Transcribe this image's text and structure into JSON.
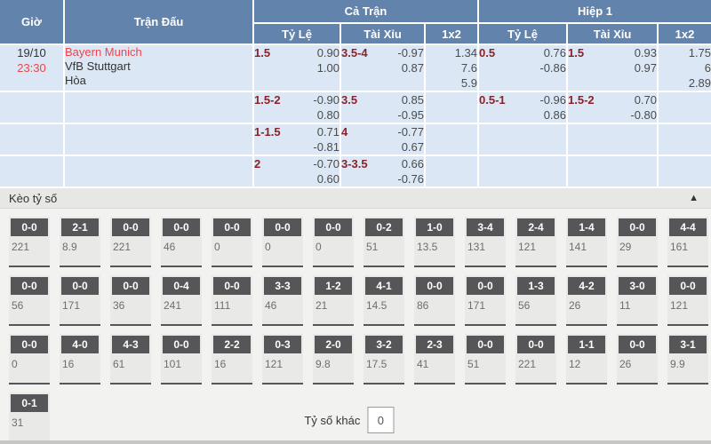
{
  "colors": {
    "header_bg": "#6284ac",
    "row_bg": "#dbe7f5",
    "accent_red": "#e8484d",
    "line_maroon": "#8a2228",
    "tile_dark": "#565658"
  },
  "table": {
    "columns": {
      "time": "Giờ",
      "match": "Trận Đấu",
      "full_match": "Cả Trận",
      "first_half": "Hiệp 1",
      "handicap": "Tỷ Lệ",
      "over_under": "Tài Xỉu",
      "one_x_two": "1x2"
    },
    "match": {
      "date": "19/10",
      "time": "23:30",
      "home_team": "Bayern Munich",
      "away_team": "VfB Stuttgart",
      "draw_label": "Hòa"
    },
    "rows": [
      {
        "full": {
          "hdp": {
            "line": "1.5",
            "odds": [
              "0.90",
              "1.00"
            ]
          },
          "ou": {
            "line": "3.5-4",
            "odds": [
              "-0.97",
              "0.87"
            ]
          },
          "x12": [
            "1.34",
            "7.6",
            "5.9"
          ]
        },
        "half": {
          "hdp": {
            "line": "0.5",
            "odds": [
              "0.76",
              "-0.86"
            ]
          },
          "ou": {
            "line": "1.5",
            "odds": [
              "0.93",
              "0.97"
            ]
          },
          "x12": [
            "1.75",
            "6",
            "2.89"
          ]
        }
      },
      {
        "full": {
          "hdp": {
            "line": "1.5-2",
            "odds": [
              "-0.90",
              "0.80"
            ]
          },
          "ou": {
            "line": "3.5",
            "odds": [
              "0.85",
              "-0.95"
            ]
          },
          "x12": []
        },
        "half": {
          "hdp": {
            "line": "0.5-1",
            "odds": [
              "-0.96",
              "0.86"
            ]
          },
          "ou": {
            "line": "1.5-2",
            "odds": [
              "0.70",
              "-0.80"
            ]
          },
          "x12": []
        }
      },
      {
        "full": {
          "hdp": {
            "line": "1-1.5",
            "odds": [
              "0.71",
              "-0.81"
            ]
          },
          "ou": {
            "line": "4",
            "odds": [
              "-0.77",
              "0.67"
            ]
          },
          "x12": []
        },
        "half": {
          "hdp": null,
          "ou": null,
          "x12": []
        }
      },
      {
        "full": {
          "hdp": {
            "line": "2",
            "odds": [
              "-0.70",
              "0.60"
            ]
          },
          "ou": {
            "line": "3-3.5",
            "odds": [
              "0.66",
              "-0.76"
            ]
          },
          "x12": []
        },
        "half": {
          "hdp": null,
          "ou": null,
          "x12": []
        }
      }
    ]
  },
  "score_section": {
    "title": "Kèo tỷ số",
    "collapse_icon": "▲",
    "other_score_label": "Tỷ số khác",
    "other_score_value": "0",
    "rows": [
      [
        {
          "score": "0-0",
          "odds": "221"
        },
        {
          "score": "2-1",
          "odds": "8.9"
        },
        {
          "score": "0-0",
          "odds": "221"
        },
        {
          "score": "0-0",
          "odds": "46"
        },
        {
          "score": "0-0",
          "odds": "0"
        },
        {
          "score": "0-0",
          "odds": "0"
        },
        {
          "score": "0-0",
          "odds": "0"
        },
        {
          "score": "0-2",
          "odds": "51"
        },
        {
          "score": "1-0",
          "odds": "13.5"
        },
        {
          "score": "3-4",
          "odds": "131"
        },
        {
          "score": "2-4",
          "odds": "121"
        },
        {
          "score": "1-4",
          "odds": "141"
        },
        {
          "score": "0-0",
          "odds": "29"
        },
        {
          "score": "4-4",
          "odds": "161"
        }
      ],
      [
        {
          "score": "0-0",
          "odds": "56"
        },
        {
          "score": "0-0",
          "odds": "171"
        },
        {
          "score": "0-0",
          "odds": "36"
        },
        {
          "score": "0-4",
          "odds": "241"
        },
        {
          "score": "0-0",
          "odds": "111"
        },
        {
          "score": "3-3",
          "odds": "46"
        },
        {
          "score": "1-2",
          "odds": "21"
        },
        {
          "score": "4-1",
          "odds": "14.5"
        },
        {
          "score": "0-0",
          "odds": "86"
        },
        {
          "score": "0-0",
          "odds": "171"
        },
        {
          "score": "1-3",
          "odds": "56"
        },
        {
          "score": "4-2",
          "odds": "26"
        },
        {
          "score": "3-0",
          "odds": "11"
        },
        {
          "score": "0-0",
          "odds": "121"
        }
      ],
      [
        {
          "score": "0-0",
          "odds": "0"
        },
        {
          "score": "4-0",
          "odds": "16"
        },
        {
          "score": "4-3",
          "odds": "61"
        },
        {
          "score": "0-0",
          "odds": "101"
        },
        {
          "score": "2-2",
          "odds": "16"
        },
        {
          "score": "0-3",
          "odds": "121"
        },
        {
          "score": "2-0",
          "odds": "9.8"
        },
        {
          "score": "3-2",
          "odds": "17.5"
        },
        {
          "score": "2-3",
          "odds": "41"
        },
        {
          "score": "0-0",
          "odds": "51"
        },
        {
          "score": "0-0",
          "odds": "221"
        },
        {
          "score": "1-1",
          "odds": "12"
        },
        {
          "score": "0-0",
          "odds": "26"
        },
        {
          "score": "3-1",
          "odds": "9.9"
        }
      ],
      [
        {
          "score": "0-1",
          "odds": "31"
        }
      ]
    ]
  }
}
